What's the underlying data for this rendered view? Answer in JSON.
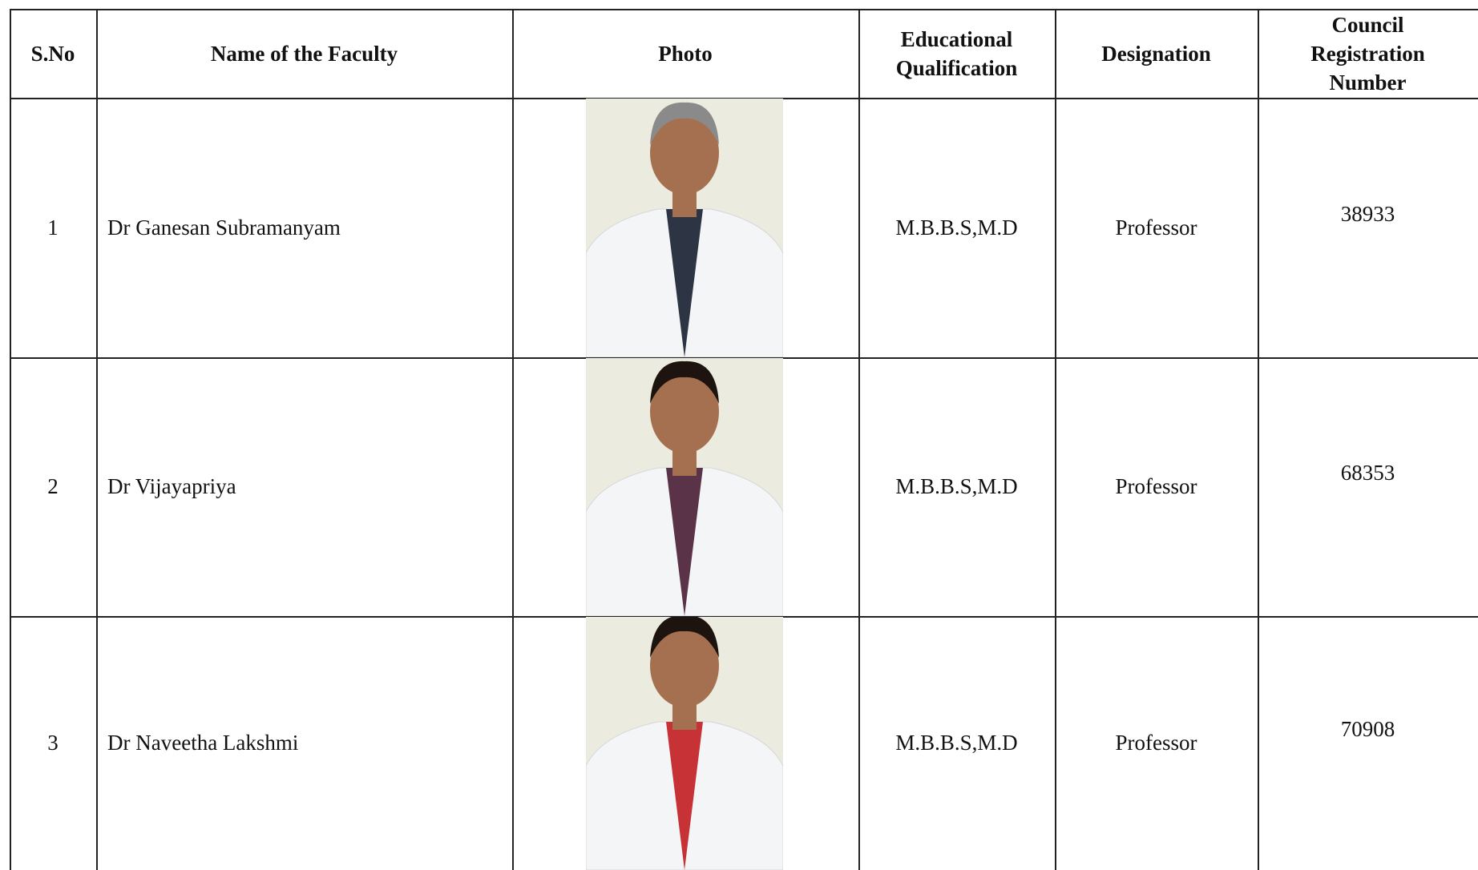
{
  "table": {
    "header": [
      "S.No",
      "Name of the Faculty",
      "Photo",
      "Educational Qualification",
      "Designation",
      "Council Registration Number"
    ],
    "rows": [
      [
        "1",
        "Dr Ganesan Subramanyam",
        "M.B.B.S,M.D",
        "Professor",
        "38933"
      ],
      [
        "2",
        "Dr Vijayapriya",
        "M.B.B.S,M.D",
        "Professor",
        "68353"
      ],
      [
        "3",
        "Dr Naveetha Lakshmi",
        "M.B.B.S,M.D",
        "Professor",
        "70908"
      ]
    ]
  }
}
